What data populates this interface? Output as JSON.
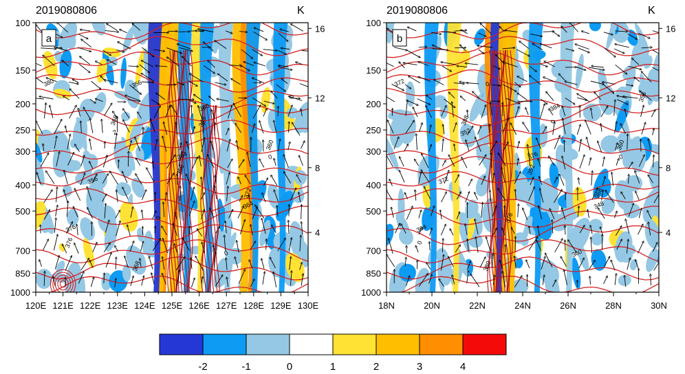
{
  "chart_data": [
    {
      "type": "heatmap",
      "panel_label": "a",
      "title": "2019080806",
      "right_unit": "K",
      "x_ticks": [
        "120E",
        "121E",
        "122E",
        "123E",
        "124E",
        "125E",
        "126E",
        "127E",
        "128E",
        "129E",
        "130E"
      ],
      "xlim": [
        120,
        130
      ],
      "y_ticks": [
        100,
        150,
        200,
        250,
        300,
        400,
        500,
        700,
        850,
        1000
      ],
      "ylim": [
        1000,
        100
      ],
      "y_scale": "log",
      "right_ticks": [
        "16",
        "12",
        "8",
        "4"
      ],
      "contour_labels": [
        "380",
        "368",
        "364",
        "372",
        "376",
        "368",
        "360",
        "360",
        "356",
        "0",
        "0",
        "0",
        "2",
        "356",
        "364",
        "376",
        "356",
        "348",
        "0"
      ],
      "shaded_bands": [
        {
          "x": 124.6,
          "value": 4
        },
        {
          "x": 124.5,
          "value": 3
        },
        {
          "x": 124.4,
          "value": -2
        },
        {
          "x": 125.0,
          "value": 3
        },
        {
          "x": 125.5,
          "value": -1
        },
        {
          "x": 126.0,
          "value": 2
        },
        {
          "x": 126.3,
          "value": -1
        },
        {
          "x": 127.6,
          "value": 3
        },
        {
          "x": 127.9,
          "value": 4
        },
        {
          "x": 127.0,
          "value": 0
        },
        {
          "x": 128.0,
          "value": -1
        },
        {
          "x": 129.0,
          "value": -1
        }
      ]
    },
    {
      "type": "heatmap",
      "panel_label": "b",
      "title": "2019080806",
      "right_unit": "K",
      "x_ticks": [
        "18N",
        "20N",
        "22N",
        "24N",
        "26N",
        "28N",
        "30N"
      ],
      "xlim": [
        18,
        30
      ],
      "y_ticks": [
        100,
        150,
        200,
        250,
        300,
        400,
        500,
        700,
        850,
        1000
      ],
      "ylim": [
        1000,
        100
      ],
      "y_scale": "log",
      "right_ticks": [
        "16",
        "12",
        "8",
        "4"
      ],
      "contour_labels": [
        "372",
        "388",
        "376",
        "368",
        "364",
        "380",
        "384",
        "360",
        "372",
        "376",
        "360",
        "356",
        "352",
        "352",
        "348",
        "0",
        "0",
        "0",
        "0"
      ],
      "shaded_bands": [
        {
          "x": 22.8,
          "value": 4
        },
        {
          "x": 23.0,
          "value": 3
        },
        {
          "x": 22.9,
          "value": -2
        },
        {
          "x": 23.4,
          "value": 3
        },
        {
          "x": 24.6,
          "value": -1
        },
        {
          "x": 21.0,
          "value": 2
        },
        {
          "x": 20.0,
          "value": -1
        },
        {
          "x": 26.0,
          "value": 0
        }
      ]
    }
  ],
  "colorbar": {
    "colors": [
      "#2538d6",
      "#0d9bf4",
      "#94c8e4",
      "#ffffff",
      "#ffe234",
      "#ffbe00",
      "#ff8e00",
      "#f50a0a"
    ],
    "labels": [
      "-2",
      "-1",
      "0",
      "1",
      "2",
      "3",
      "4"
    ]
  },
  "colors": {
    "contour": "#d42020",
    "wind": "#000000",
    "axis": "#000000"
  }
}
